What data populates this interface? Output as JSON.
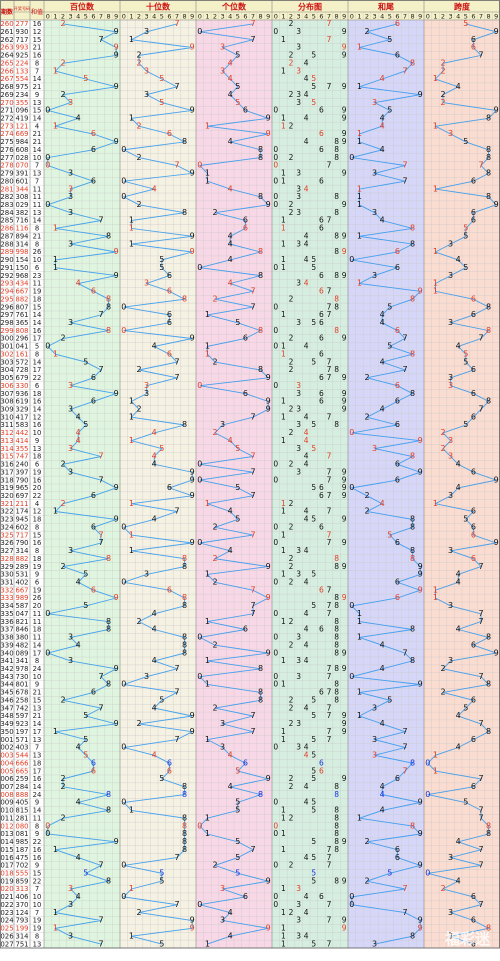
{
  "header": {
    "issue_label": "期数",
    "draw_label": "开奖号码",
    "sum_label": "和值",
    "digit_labels": [
      "0",
      "1",
      "2",
      "3",
      "4",
      "5",
      "6",
      "7",
      "8",
      "9"
    ]
  },
  "watermark": "福彩迷",
  "colors": {
    "hundreds_bg": "#dff5df",
    "tens_bg": "#f5f1e3",
    "units_bg": "#f8d8e6",
    "distribution_bg": "#d6eee0",
    "sum_tail_bg": "#d6d6f8",
    "span_bg": "#fadcd0",
    "issue_red": "#e23c24",
    "line": "#3399ee",
    "section_title": "#cc1111",
    "header_bg": "#f4f0c8"
  },
  "chart_data": {
    "type": "table",
    "columns": [
      "百位数",
      "十位数",
      "个位数",
      "分布图",
      "和尾",
      "跨度"
    ],
    "rows": [
      {
        "issue": "260",
        "draw": "277",
        "sum": "16",
        "hl": true
      },
      {
        "issue": "261",
        "draw": "930",
        "sum": "12",
        "hl": false
      },
      {
        "issue": "262",
        "draw": "717",
        "sum": "15",
        "hl": false
      },
      {
        "issue": "263",
        "draw": "993",
        "sum": "21",
        "hl": true
      },
      {
        "issue": "264",
        "draw": "925",
        "sum": "16",
        "hl": false
      },
      {
        "issue": "265",
        "draw": "224",
        "sum": "8",
        "hl": true
      },
      {
        "issue": "266",
        "draw": "133",
        "sum": "7",
        "hl": true
      },
      {
        "issue": "267",
        "draw": "554",
        "sum": "14",
        "hl": true
      },
      {
        "issue": "268",
        "draw": "975",
        "sum": "21",
        "hl": false
      },
      {
        "issue": "269",
        "draw": "234",
        "sum": "9",
        "hl": false
      },
      {
        "issue": "270",
        "draw": "355",
        "sum": "13",
        "hl": true
      },
      {
        "issue": "271",
        "draw": "096",
        "sum": "15",
        "hl": false
      },
      {
        "issue": "272",
        "draw": "419",
        "sum": "14",
        "hl": false
      },
      {
        "issue": "273",
        "draw": "121",
        "sum": "4",
        "hl": true
      },
      {
        "issue": "274",
        "draw": "669",
        "sum": "21",
        "hl": true
      },
      {
        "issue": "275",
        "draw": "984",
        "sum": "21",
        "hl": false
      },
      {
        "issue": "276",
        "draw": "608",
        "sum": "14",
        "hl": false
      },
      {
        "issue": "277",
        "draw": "028",
        "sum": "10",
        "hl": false
      },
      {
        "issue": "278",
        "draw": "070",
        "sum": "7",
        "hl": true
      },
      {
        "issue": "279",
        "draw": "391",
        "sum": "13",
        "hl": false
      },
      {
        "issue": "280",
        "draw": "601",
        "sum": "7",
        "hl": false
      },
      {
        "issue": "281",
        "draw": "344",
        "sum": "11",
        "hl": true
      },
      {
        "issue": "282",
        "draw": "308",
        "sum": "11",
        "hl": false
      },
      {
        "issue": "283",
        "draw": "029",
        "sum": "11",
        "hl": false
      },
      {
        "issue": "284",
        "draw": "382",
        "sum": "13",
        "hl": false
      },
      {
        "issue": "285",
        "draw": "716",
        "sum": "14",
        "hl": false
      },
      {
        "issue": "286",
        "draw": "116",
        "sum": "8",
        "hl": true
      },
      {
        "issue": "287",
        "draw": "894",
        "sum": "21",
        "hl": false
      },
      {
        "issue": "288",
        "draw": "314",
        "sum": "8",
        "hl": false
      },
      {
        "issue": "289",
        "draw": "998",
        "sum": "26",
        "hl": true
      },
      {
        "issue": "290",
        "draw": "154",
        "sum": "10",
        "hl": false
      },
      {
        "issue": "291",
        "draw": "150",
        "sum": "6",
        "hl": false
      },
      {
        "issue": "292",
        "draw": "968",
        "sum": "23",
        "hl": false
      },
      {
        "issue": "293",
        "draw": "434",
        "sum": "11",
        "hl": true
      },
      {
        "issue": "294",
        "draw": "667",
        "sum": "19",
        "hl": true
      },
      {
        "issue": "295",
        "draw": "882",
        "sum": "18",
        "hl": true
      },
      {
        "issue": "296",
        "draw": "807",
        "sum": "15",
        "hl": false
      },
      {
        "issue": "297",
        "draw": "761",
        "sum": "14",
        "hl": false
      },
      {
        "issue": "298",
        "draw": "365",
        "sum": "14",
        "hl": false
      },
      {
        "issue": "299",
        "draw": "808",
        "sum": "16",
        "hl": true
      },
      {
        "issue": "300",
        "draw": "296",
        "sum": "17",
        "hl": false
      },
      {
        "issue": "301",
        "draw": "041",
        "sum": "5",
        "hl": false
      },
      {
        "issue": "302",
        "draw": "161",
        "sum": "8",
        "hl": true
      },
      {
        "issue": "303",
        "draw": "572",
        "sum": "14",
        "hl": false
      },
      {
        "issue": "304",
        "draw": "728",
        "sum": "17",
        "hl": false
      },
      {
        "issue": "305",
        "draw": "679",
        "sum": "22",
        "hl": false
      },
      {
        "issue": "306",
        "draw": "330",
        "sum": "6",
        "hl": true
      },
      {
        "issue": "307",
        "draw": "936",
        "sum": "18",
        "hl": false
      },
      {
        "issue": "308",
        "draw": "619",
        "sum": "16",
        "hl": false
      },
      {
        "issue": "309",
        "draw": "329",
        "sum": "14",
        "hl": false
      },
      {
        "issue": "310",
        "draw": "417",
        "sum": "12",
        "hl": false
      },
      {
        "issue": "311",
        "draw": "583",
        "sum": "16",
        "hl": false
      },
      {
        "issue": "312",
        "draw": "442",
        "sum": "10",
        "hl": true
      },
      {
        "issue": "313",
        "draw": "414",
        "sum": "9",
        "hl": true
      },
      {
        "issue": "314",
        "draw": "355",
        "sum": "13",
        "hl": true
      },
      {
        "issue": "315",
        "draw": "747",
        "sum": "18",
        "hl": true
      },
      {
        "issue": "316",
        "draw": "240",
        "sum": "6",
        "hl": false
      },
      {
        "issue": "317",
        "draw": "397",
        "sum": "19",
        "hl": false
      },
      {
        "issue": "318",
        "draw": "790",
        "sum": "16",
        "hl": false
      },
      {
        "issue": "319",
        "draw": "965",
        "sum": "20",
        "hl": false
      },
      {
        "issue": "320",
        "draw": "697",
        "sum": "22",
        "hl": false
      },
      {
        "issue": "321",
        "draw": "211",
        "sum": "4",
        "hl": true
      },
      {
        "issue": "322",
        "draw": "174",
        "sum": "12",
        "hl": false
      },
      {
        "issue": "323",
        "draw": "945",
        "sum": "18",
        "hl": false
      },
      {
        "issue": "324",
        "draw": "602",
        "sum": "8",
        "hl": false
      },
      {
        "issue": "325",
        "draw": "717",
        "sum": "15",
        "hl": true
      },
      {
        "issue": "326",
        "draw": "790",
        "sum": "16",
        "hl": false
      },
      {
        "issue": "327",
        "draw": "314",
        "sum": "8",
        "hl": false
      },
      {
        "issue": "328",
        "draw": "882",
        "sum": "18",
        "hl": true
      },
      {
        "issue": "329",
        "draw": "289",
        "sum": "19",
        "hl": false
      },
      {
        "issue": "330",
        "draw": "531",
        "sum": "9",
        "hl": false
      },
      {
        "issue": "331",
        "draw": "402",
        "sum": "6",
        "hl": false
      },
      {
        "issue": "332",
        "draw": "667",
        "sum": "19",
        "hl": true
      },
      {
        "issue": "333",
        "draw": "989",
        "sum": "26",
        "hl": true
      },
      {
        "issue": "334",
        "draw": "587",
        "sum": "20",
        "hl": false
      },
      {
        "issue": "335",
        "draw": "047",
        "sum": "11",
        "hl": false
      },
      {
        "issue": "336",
        "draw": "821",
        "sum": "11",
        "hl": false
      },
      {
        "issue": "337",
        "draw": "846",
        "sum": "18",
        "hl": false
      },
      {
        "issue": "338",
        "draw": "380",
        "sum": "11",
        "hl": false
      },
      {
        "issue": "339",
        "draw": "482",
        "sum": "14",
        "hl": false
      },
      {
        "issue": "340",
        "draw": "089",
        "sum": "17",
        "hl": false
      },
      {
        "issue": "341",
        "draw": "341",
        "sum": "8",
        "hl": false
      },
      {
        "issue": "342",
        "draw": "978",
        "sum": "24",
        "hl": false
      },
      {
        "issue": "343",
        "draw": "730",
        "sum": "10",
        "hl": false
      },
      {
        "issue": "344",
        "draw": "801",
        "sum": "9",
        "hl": false
      },
      {
        "issue": "345",
        "draw": "678",
        "sum": "21",
        "hl": false
      },
      {
        "issue": "346",
        "draw": "258",
        "sum": "15",
        "hl": false
      },
      {
        "issue": "347",
        "draw": "742",
        "sum": "13",
        "hl": false
      },
      {
        "issue": "348",
        "draw": "597",
        "sum": "21",
        "hl": false
      },
      {
        "issue": "349",
        "draw": "923",
        "sum": "14",
        "hl": false
      },
      {
        "issue": "350",
        "draw": "197",
        "sum": "17",
        "hl": false
      },
      {
        "issue": "001",
        "draw": "571",
        "sum": "13",
        "hl": false
      },
      {
        "issue": "002",
        "draw": "403",
        "sum": "7",
        "hl": false
      },
      {
        "issue": "003",
        "draw": "544",
        "sum": "13",
        "hl": true
      },
      {
        "issue": "004",
        "draw": "666",
        "sum": "18",
        "hl": true
      },
      {
        "issue": "005",
        "draw": "665",
        "sum": "17",
        "hl": true
      },
      {
        "issue": "006",
        "draw": "259",
        "sum": "16",
        "hl": false
      },
      {
        "issue": "007",
        "draw": "284",
        "sum": "14",
        "hl": false
      },
      {
        "issue": "008",
        "draw": "888",
        "sum": "24",
        "hl": true
      },
      {
        "issue": "009",
        "draw": "405",
        "sum": "9",
        "hl": false
      },
      {
        "issue": "010",
        "draw": "815",
        "sum": "14",
        "hl": false
      },
      {
        "issue": "011",
        "draw": "281",
        "sum": "11",
        "hl": false
      },
      {
        "issue": "012",
        "draw": "080",
        "sum": "8",
        "hl": true
      },
      {
        "issue": "013",
        "draw": "081",
        "sum": "9",
        "hl": false
      },
      {
        "issue": "014",
        "draw": "985",
        "sum": "22",
        "hl": false
      },
      {
        "issue": "015",
        "draw": "187",
        "sum": "16",
        "hl": false
      },
      {
        "issue": "016",
        "draw": "475",
        "sum": "16",
        "hl": false
      },
      {
        "issue": "017",
        "draw": "702",
        "sum": "9",
        "hl": false
      },
      {
        "issue": "018",
        "draw": "555",
        "sum": "15",
        "hl": true
      },
      {
        "issue": "019",
        "draw": "859",
        "sum": "22",
        "hl": false
      },
      {
        "issue": "020",
        "draw": "313",
        "sum": "7",
        "hl": true
      },
      {
        "issue": "021",
        "draw": "406",
        "sum": "10",
        "hl": false
      },
      {
        "issue": "022",
        "draw": "370",
        "sum": "10",
        "hl": false
      },
      {
        "issue": "023",
        "draw": "124",
        "sum": "7",
        "hl": false
      },
      {
        "issue": "024",
        "draw": "793",
        "sum": "19",
        "hl": false
      },
      {
        "issue": "025",
        "draw": "199",
        "sum": "19",
        "hl": true
      },
      {
        "issue": "026",
        "draw": "314",
        "sum": "8",
        "hl": false
      },
      {
        "issue": "027",
        "draw": "751",
        "sum": "13",
        "hl": false
      }
    ]
  }
}
